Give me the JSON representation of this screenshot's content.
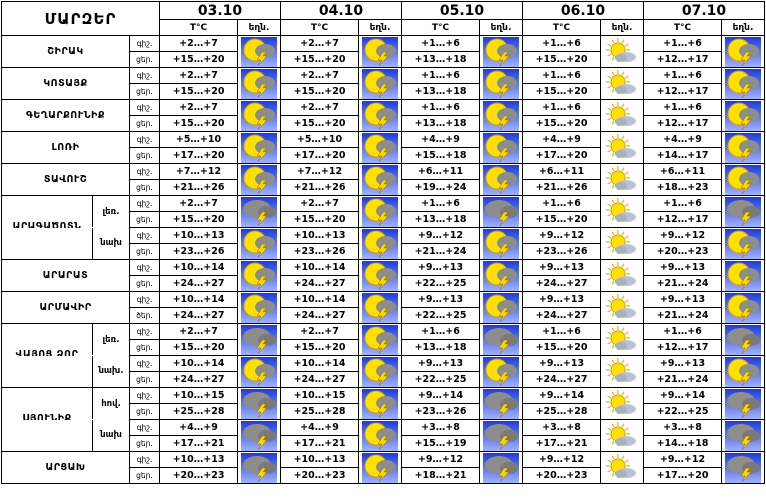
{
  "header": {
    "title": "ՄԱՐԶԵՐ",
    "dates": [
      "03.10",
      "04.10",
      "05.10",
      "06.10",
      "07.10"
    ],
    "temp_label": "T°C",
    "icon_label": "եղն."
  },
  "labels": {
    "night": "գիշ.",
    "day": "ցեր.",
    "day_alt": "ծեր."
  },
  "rows": [
    {
      "region": "ՇԻՐԱԿ",
      "sub": "",
      "lbl_top": "գիշ.",
      "lbl_bot": "ցեր.",
      "days": [
        {
          "night": "+2…+7",
          "day": "+15…+20",
          "icon": "sun-cloud-thunder-icon"
        },
        {
          "night": "+2…+7",
          "day": "+15…+20",
          "icon": "sun-cloud-thunder-icon"
        },
        {
          "night": "+1…+6",
          "day": "+13…+18",
          "icon": "sun-cloud-thunder-icon"
        },
        {
          "night": "+1…+6",
          "day": "+15…+20",
          "icon": "sun-cloud-icon"
        },
        {
          "night": "+1…+6",
          "day": "+12…+17",
          "icon": "sun-cloud-thunder-icon"
        }
      ]
    },
    {
      "region": "ԿՈՏԱՅՔ",
      "sub": "",
      "lbl_top": "գիշ.",
      "lbl_bot": "ցեր.",
      "days": [
        {
          "night": "+2…+7",
          "day": "+15…+20",
          "icon": "sun-cloud-thunder-icon"
        },
        {
          "night": "+2…+7",
          "day": "+15…+20",
          "icon": "sun-cloud-thunder-icon"
        },
        {
          "night": "+1…+6",
          "day": "+13…+18",
          "icon": "sun-cloud-thunder-icon"
        },
        {
          "night": "+1…+6",
          "day": "+15…+20",
          "icon": "sun-cloud-icon"
        },
        {
          "night": "+1…+6",
          "day": "+12…+17",
          "icon": "sun-cloud-thunder-icon"
        }
      ]
    },
    {
      "region": "ԳԵՂԱՐՔՈՒՆԻՔ",
      "sub": "",
      "lbl_top": "գիշ.",
      "lbl_bot": "ցեր.",
      "days": [
        {
          "night": "+2…+7",
          "day": "+15…+20",
          "icon": "sun-cloud-thunder-icon"
        },
        {
          "night": "+2…+7",
          "day": "+15…+20",
          "icon": "sun-cloud-thunder-icon"
        },
        {
          "night": "+1…+6",
          "day": "+13…+18",
          "icon": "sun-cloud-thunder-icon"
        },
        {
          "night": "+1…+6",
          "day": "+15…+20",
          "icon": "sun-cloud-icon"
        },
        {
          "night": "+1…+6",
          "day": "+12…+17",
          "icon": "sun-cloud-thunder-icon"
        }
      ]
    },
    {
      "region": "ԼՈՌԻ",
      "sub": "",
      "lbl_top": "գիշ.",
      "lbl_bot": "ցեր.",
      "days": [
        {
          "night": "+5…+10",
          "day": "+17…+20",
          "icon": "sun-cloud-thunder-icon"
        },
        {
          "night": "+5…+10",
          "day": "+17…+20",
          "icon": "sun-cloud-thunder-icon"
        },
        {
          "night": "+4…+9",
          "day": "+15…+18",
          "icon": "sun-cloud-thunder-icon"
        },
        {
          "night": "+4…+9",
          "day": "+17…+20",
          "icon": "sun-cloud-icon"
        },
        {
          "night": "+4…+9",
          "day": "+14…+17",
          "icon": "sun-cloud-thunder-icon"
        }
      ]
    },
    {
      "region": "ՏԱՎՈՒՇ",
      "sub": "",
      "lbl_top": "գիշ.",
      "lbl_bot": "ցեր.",
      "days": [
        {
          "night": "+7…+12",
          "day": "+21…+26",
          "icon": "sun-cloud-thunder-icon"
        },
        {
          "night": "+7…+12",
          "day": "+21…+26",
          "icon": "sun-cloud-thunder-icon"
        },
        {
          "night": "+6…+11",
          "day": "+19…+24",
          "icon": "sun-cloud-thunder-icon"
        },
        {
          "night": "+6…+11",
          "day": "+21…+26",
          "icon": "sun-cloud-icon"
        },
        {
          "night": "+6…+11",
          "day": "+18…+23",
          "icon": "sun-cloud-thunder-icon"
        }
      ]
    },
    {
      "region": "ԱՐԱԳԱԾՈՏՆ",
      "sub": "լեռ.",
      "lbl_top": "գիշ.",
      "lbl_bot": "ցեր.",
      "days": [
        {
          "night": "+2…+7",
          "day": "+15…+20",
          "icon": "cloud-thunder-icon"
        },
        {
          "night": "+2…+7",
          "day": "+15…+20",
          "icon": "sun-cloud-thunder-icon"
        },
        {
          "night": "+1…+6",
          "day": "+13…+18",
          "icon": "cloud-thunder-icon"
        },
        {
          "night": "+1…+6",
          "day": "+15…+20",
          "icon": "sun-cloud-icon"
        },
        {
          "night": "+1…+6",
          "day": "+12…+17",
          "icon": "cloud-thunder-icon"
        }
      ]
    },
    {
      "region": "",
      "sub": "նախ",
      "lbl_top": "գիշ.",
      "lbl_bot": "ցեր.",
      "days": [
        {
          "night": "+10…+13",
          "day": "+23…+26",
          "icon": "sun-cloud-thunder-icon"
        },
        {
          "night": "+10…+13",
          "day": "+23…+26",
          "icon": "sun-cloud-thunder-icon"
        },
        {
          "night": "+9…+12",
          "day": "+21…+24",
          "icon": "sun-cloud-thunder-icon"
        },
        {
          "night": "+9…+12",
          "day": "+23…+26",
          "icon": "sun-cloud-icon"
        },
        {
          "night": "+9…+12",
          "day": "+20…+23",
          "icon": "sun-cloud-thunder-icon"
        }
      ]
    },
    {
      "region": "ԱՐԱՐԱՏ",
      "sub": "",
      "lbl_top": "գիշ.",
      "lbl_bot": "ցեր.",
      "days": [
        {
          "night": "+10…+14",
          "day": "+24…+27",
          "icon": "sun-cloud-thunder-icon"
        },
        {
          "night": "+10…+14",
          "day": "+24…+27",
          "icon": "sun-cloud-thunder-icon"
        },
        {
          "night": "+9…+13",
          "day": "+22…+25",
          "icon": "sun-cloud-thunder-icon"
        },
        {
          "night": "+9…+13",
          "day": "+24…+27",
          "icon": "sun-cloud-icon"
        },
        {
          "night": "+9…+13",
          "day": "+21…+24",
          "icon": "sun-cloud-thunder-icon"
        }
      ]
    },
    {
      "region": "ԱՐՄԱՎԻՐ",
      "sub": "",
      "lbl_top": "գիշ.",
      "lbl_bot": "ծեր.",
      "days": [
        {
          "night": "+10…+14",
          "day": "+24…+27",
          "icon": "sun-cloud-thunder-icon"
        },
        {
          "night": "+10…+14",
          "day": "+24…+27",
          "icon": "sun-cloud-thunder-icon"
        },
        {
          "night": "+9…+13",
          "day": "+22…+25",
          "icon": "sun-cloud-thunder-icon"
        },
        {
          "night": "+9…+13",
          "day": "+24…+27",
          "icon": "sun-cloud-icon"
        },
        {
          "night": "+9…+13",
          "day": "+21…+24",
          "icon": "sun-cloud-thunder-icon"
        }
      ]
    },
    {
      "region": "ՎԱՅՈՑ ՁՈՐ",
      "sub": "լեռ.",
      "lbl_top": "գիշ.",
      "lbl_bot": "ցեր.",
      "days": [
        {
          "night": "+2…+7",
          "day": "+15…+20",
          "icon": "cloud-thunder-icon"
        },
        {
          "night": "+2…+7",
          "day": "+15…+20",
          "icon": "sun-cloud-thunder-icon"
        },
        {
          "night": "+1…+6",
          "day": "+13…+18",
          "icon": "cloud-thunder-icon"
        },
        {
          "night": "+1…+6",
          "day": "+15…+20",
          "icon": "sun-cloud-icon"
        },
        {
          "night": "+1…+6",
          "day": "+12…+17",
          "icon": "cloud-thunder-icon"
        }
      ]
    },
    {
      "region": "",
      "sub": "նախ.",
      "lbl_top": "գիշ.",
      "lbl_bot": "ցեր.",
      "days": [
        {
          "night": "+10…+14",
          "day": "+24…+27",
          "icon": "sun-cloud-thunder-icon"
        },
        {
          "night": "+10…+14",
          "day": "+24…+27",
          "icon": "sun-cloud-thunder-icon"
        },
        {
          "night": "+9…+13",
          "day": "+22…+25",
          "icon": "sun-cloud-thunder-icon"
        },
        {
          "night": "+9…+13",
          "day": "+24…+27",
          "icon": "sun-cloud-icon"
        },
        {
          "night": "+9…+13",
          "day": "+21…+24",
          "icon": "sun-cloud-thunder-icon"
        }
      ]
    },
    {
      "region": "ՍՅՈՒՆԻՔ",
      "sub": "հով.",
      "lbl_top": "գիշ.",
      "lbl_bot": "ցեր.",
      "days": [
        {
          "night": "+10…+15",
          "day": "+25…+28",
          "icon": "cloud-thunder-icon"
        },
        {
          "night": "+10…+15",
          "day": "+25…+28",
          "icon": "sun-cloud-thunder-icon"
        },
        {
          "night": "+9…+14",
          "day": "+23…+26",
          "icon": "cloud-thunder-icon"
        },
        {
          "night": "+9…+14",
          "day": "+25…+28",
          "icon": "sun-cloud-icon"
        },
        {
          "night": "+9…+14",
          "day": "+22…+25",
          "icon": "cloud-thunder-icon"
        }
      ]
    },
    {
      "region": "",
      "sub": "նախ",
      "lbl_top": "գիշ.",
      "lbl_bot": "ցեր.",
      "days": [
        {
          "night": "+4…+9",
          "day": "+17…+21",
          "icon": "cloud-thunder-icon"
        },
        {
          "night": "+4…+9",
          "day": "+17…+21",
          "icon": "sun-cloud-thunder-icon"
        },
        {
          "night": "+3…+8",
          "day": "+15…+19",
          "icon": "cloud-thunder-icon"
        },
        {
          "night": "+3…+8",
          "day": "+17…+21",
          "icon": "sun-cloud-icon"
        },
        {
          "night": "+3…+8",
          "day": "+14…+18",
          "icon": "cloud-thunder-icon"
        }
      ]
    },
    {
      "region": "ԱՐՑԱԽ",
      "sub": "",
      "lbl_top": "գիշ.",
      "lbl_bot": "ցեր.",
      "days": [
        {
          "night": "+10…+13",
          "day": "+20…+23",
          "icon": "cloud-thunder-icon"
        },
        {
          "night": "+10…+13",
          "day": "+20…+23",
          "icon": "sun-cloud-thunder-icon"
        },
        {
          "night": "+9…+12",
          "day": "+18…+21",
          "icon": "cloud-thunder-icon"
        },
        {
          "night": "+9…+12",
          "day": "+20…+23",
          "icon": "sun-cloud-icon"
        },
        {
          "night": "+9…+12",
          "day": "+17…+20",
          "icon": "cloud-thunder-icon"
        }
      ]
    }
  ],
  "colors": {
    "icon_sky_top": "#1f3bd6",
    "icon_sky_bottom": "#9fb2ff",
    "sun": "#ffe000",
    "sun_stroke": "#d4a000",
    "cloud": "#8d8d8d",
    "lightning": "#ffd400"
  }
}
